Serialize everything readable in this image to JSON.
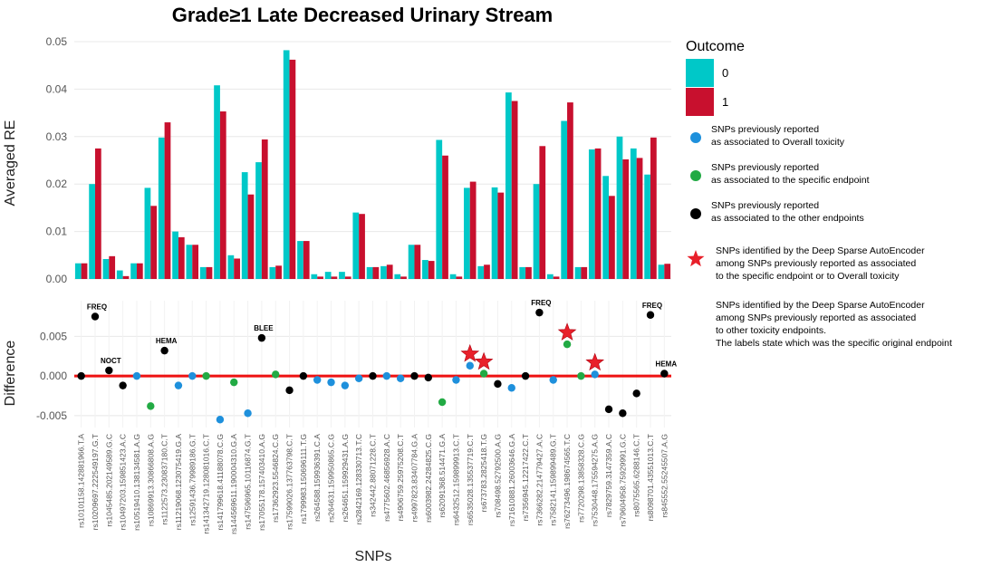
{
  "chart_data": {
    "title": "Grade≥1 Late Decreased Urinary Stream",
    "xlabel": "SNPs",
    "colors": {
      "outcome0": "#00C8C8",
      "outcome1": "#C8102E",
      "overall": "#1E90DC",
      "specific": "#22AA44",
      "other": "#000000",
      "zero_line": "#EE1111",
      "star": "#E8202A"
    },
    "snps": [
      "rs10101158.142881966.T.A",
      "rs10209697.222549197.G.T",
      "rs1045485.202149589.G.C",
      "rs10497203.159851423.A.C",
      "rs10519410.138134581.A.G",
      "rs10869913.30866808.A.G",
      "rs1122573.230837180.C.T",
      "rs11219068.123075419.G.A",
      "rs12591436.79989186.G.T",
      "rs141342719.128081016.C.T",
      "rs141799618.41188078.C.G",
      "rs144569611.190004310.G.A",
      "rs147596965.10116874.G.T",
      "rs17055178.157403410.A.G",
      "rs17362923.5546824.C.G",
      "rs17599026.137763798.C.T",
      "rs1799983.150696111.T.G",
      "rs264588.159936391.C.A",
      "rs264631.159950865.C.G",
      "rs264651.159929431.A.G",
      "rs2842169.128330713.T.C",
      "rs342442.88071228.C.T",
      "rs4775602.46856928.A.C",
      "rs4906759.25975208.C.T",
      "rs4997823.83407784.G.A",
      "rs6003982.24284825.C.G",
      "rs62091368.514471.G.A",
      "rs6432512.159899913.C.T",
      "rs6535028.135537719.C.T",
      "rs673783.2825418.T.G",
      "rs708498.52792500.A.G",
      "rs71610881.26003646.G.A",
      "rs7356945.12217422.C.T",
      "rs7366282.214779427.A.C",
      "rs7582141.159899489.G.T",
      "rs76273496.198674565.T.C",
      "rs7720298.13858328.C.G",
      "rs7530448.175594275.A.G",
      "rs7829759.3147359.A.C",
      "rs79604958.75929991.G.C",
      "rs8075565.6288146.C.T",
      "rs8098701.43551013.C.T",
      "rs845552.55245507.A.G"
    ],
    "top_panel": {
      "type": "bar",
      "ylabel": "Averaged RE",
      "ylim": [
        0,
        0.05
      ],
      "yticks": [
        "0.00",
        "0.01",
        "0.02",
        "0.03",
        "0.04",
        "0.05"
      ],
      "series": [
        {
          "name": "0",
          "values": [
            0.0033,
            0.02,
            0.0042,
            0.0018,
            0.0033,
            0.0192,
            0.0298,
            0.01,
            0.0072,
            0.0025,
            0.0408,
            0.005,
            0.0225,
            0.0246,
            0.0025,
            0.0482,
            0.008,
            0.001,
            0.0015,
            0.0015,
            0.014,
            0.0025,
            0.0027,
            0.001,
            0.0072,
            0.004,
            0.0293,
            0.001,
            0.0192,
            0.0027,
            0.0193,
            0.0393,
            0.0025,
            0.02,
            0.001,
            0.0333,
            0.0025,
            0.0273,
            0.0217,
            0.03,
            0.0275,
            0.022,
            0.003
          ]
        },
        {
          "name": "1",
          "values": [
            0.0033,
            0.0275,
            0.0048,
            0.0006,
            0.0033,
            0.0154,
            0.033,
            0.0088,
            0.0072,
            0.0025,
            0.0353,
            0.0043,
            0.0178,
            0.0294,
            0.0028,
            0.0462,
            0.008,
            0.0005,
            0.0005,
            0.0005,
            0.0137,
            0.0025,
            0.003,
            0.0005,
            0.0072,
            0.0038,
            0.026,
            0.0005,
            0.0205,
            0.003,
            0.0182,
            0.0375,
            0.0025,
            0.028,
            0.0005,
            0.0372,
            0.0025,
            0.0275,
            0.0175,
            0.0252,
            0.0255,
            0.0298,
            0.0032
          ]
        }
      ]
    },
    "bottom_panel": {
      "type": "scatter",
      "ylabel": "Difference",
      "ylim": [
        -0.0065,
        0.0095
      ],
      "yticks": [
        "-0.005",
        "0.000",
        "0.005"
      ],
      "ytick_values": [
        -0.005,
        0.0,
        0.005
      ],
      "points": [
        {
          "i": 0,
          "y": 0.0,
          "cat": "other"
        },
        {
          "i": 1,
          "y": 0.0075,
          "cat": "other",
          "label": "FREQ"
        },
        {
          "i": 2,
          "y": 0.0007,
          "cat": "other",
          "label": "NOCT"
        },
        {
          "i": 3,
          "y": -0.0012,
          "cat": "other"
        },
        {
          "i": 4,
          "y": 0.0,
          "cat": "overall"
        },
        {
          "i": 5,
          "y": -0.0038,
          "cat": "specific"
        },
        {
          "i": 6,
          "y": 0.0032,
          "cat": "other",
          "label": "HEMA"
        },
        {
          "i": 7,
          "y": -0.0012,
          "cat": "overall"
        },
        {
          "i": 8,
          "y": 0.0,
          "cat": "overall"
        },
        {
          "i": 9,
          "y": 0.0,
          "cat": "specific"
        },
        {
          "i": 10,
          "y": -0.0055,
          "cat": "overall"
        },
        {
          "i": 11,
          "y": -0.0008,
          "cat": "specific"
        },
        {
          "i": 12,
          "y": -0.0047,
          "cat": "overall"
        },
        {
          "i": 13,
          "y": 0.0048,
          "cat": "other",
          "label": "BLEE"
        },
        {
          "i": 14,
          "y": 0.0002,
          "cat": "specific"
        },
        {
          "i": 15,
          "y": -0.0018,
          "cat": "other"
        },
        {
          "i": 16,
          "y": 0.0,
          "cat": "other"
        },
        {
          "i": 17,
          "y": -0.0005,
          "cat": "overall"
        },
        {
          "i": 18,
          "y": -0.0008,
          "cat": "overall"
        },
        {
          "i": 19,
          "y": -0.0012,
          "cat": "overall"
        },
        {
          "i": 20,
          "y": -0.0003,
          "cat": "overall"
        },
        {
          "i": 21,
          "y": 0.0,
          "cat": "other"
        },
        {
          "i": 22,
          "y": 0.0,
          "cat": "overall"
        },
        {
          "i": 23,
          "y": -0.0003,
          "cat": "overall"
        },
        {
          "i": 24,
          "y": 0.0,
          "cat": "other"
        },
        {
          "i": 25,
          "y": -0.0002,
          "cat": "other"
        },
        {
          "i": 26,
          "y": -0.0033,
          "cat": "specific"
        },
        {
          "i": 27,
          "y": -0.0005,
          "cat": "overall"
        },
        {
          "i": 28,
          "y": 0.0013,
          "cat": "overall",
          "star": true
        },
        {
          "i": 29,
          "y": 0.0003,
          "cat": "specific",
          "star": true
        },
        {
          "i": 30,
          "y": -0.001,
          "cat": "other"
        },
        {
          "i": 31,
          "y": -0.0015,
          "cat": "overall"
        },
        {
          "i": 32,
          "y": 0.0,
          "cat": "other"
        },
        {
          "i": 33,
          "y": 0.008,
          "cat": "other",
          "label": "FREQ"
        },
        {
          "i": 34,
          "y": -0.0005,
          "cat": "overall"
        },
        {
          "i": 35,
          "y": 0.004,
          "cat": "specific",
          "star": true
        },
        {
          "i": 36,
          "y": 0.0,
          "cat": "specific"
        },
        {
          "i": 37,
          "y": 0.0002,
          "cat": "overall",
          "star": true
        },
        {
          "i": 38,
          "y": -0.0042,
          "cat": "other"
        },
        {
          "i": 39,
          "y": -0.0047,
          "cat": "other"
        },
        {
          "i": 40,
          "y": -0.0022,
          "cat": "other"
        },
        {
          "i": 41,
          "y": 0.0077,
          "cat": "other",
          "label": "FREQ"
        },
        {
          "i": 42,
          "y": 0.0003,
          "cat": "other",
          "label": "HEMA"
        }
      ]
    },
    "legend": {
      "title": "Outcome",
      "keys": [
        "0",
        "1"
      ],
      "items": [
        {
          "lines": [
            "SNPs previously reported",
            "as associated to Overall toxicity"
          ]
        },
        {
          "lines": [
            "SNPs previously reported",
            "as associated to the specific endpoint"
          ]
        },
        {
          "lines": [
            "SNPs previously reported",
            "as associated to the other endpoints"
          ]
        },
        {
          "lines": [
            "SNPs identified by the Deep Sparse AutoEncoder",
            "among SNPs previously reported as associated",
            "to the specific endpoint or to Overall toxicity"
          ]
        }
      ],
      "note": [
        "SNPs identified by the Deep Sparse AutoEncoder",
        "among SNPs previously reported as associated",
        "to other toxicity endpoints.",
        "The labels state which was the specific original endpoint"
      ]
    }
  }
}
